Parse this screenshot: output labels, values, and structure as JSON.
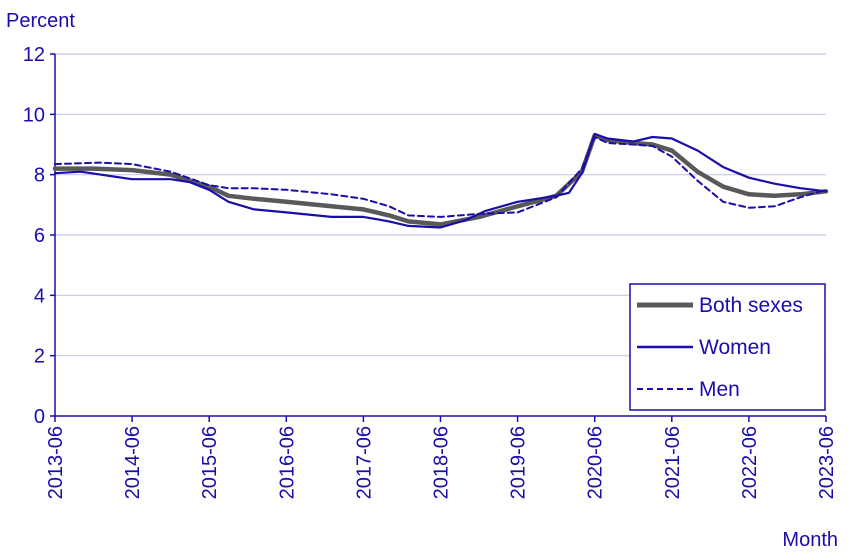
{
  "chart_data": {
    "type": "line",
    "ylabel": "Percent",
    "xlabel": "Month",
    "ylim": [
      0,
      12
    ],
    "yticks": [
      0,
      2,
      4,
      6,
      8,
      10,
      12
    ],
    "xticks": [
      "2013-06",
      "2014-06",
      "2015-06",
      "2016-06",
      "2017-06",
      "2018-06",
      "2019-06",
      "2020-06",
      "2021-06",
      "2022-06",
      "2023-06"
    ],
    "grid": true,
    "legend_position": "bottom-right",
    "series": [
      {
        "name": "Both sexes",
        "color": "#595959",
        "style": "thick",
        "points": [
          [
            "2013-06",
            8.2
          ],
          [
            "2013-12",
            8.2
          ],
          [
            "2014-06",
            8.15
          ],
          [
            "2014-12",
            8.0
          ],
          [
            "2015-06",
            7.6
          ],
          [
            "2015-09",
            7.3
          ],
          [
            "2016-01",
            7.2
          ],
          [
            "2016-06",
            7.1
          ],
          [
            "2017-01",
            6.95
          ],
          [
            "2017-06",
            6.85
          ],
          [
            "2017-10",
            6.65
          ],
          [
            "2018-01",
            6.45
          ],
          [
            "2018-06",
            6.35
          ],
          [
            "2018-12",
            6.6
          ],
          [
            "2019-06",
            6.95
          ],
          [
            "2019-12",
            7.3
          ],
          [
            "2020-04",
            8.1
          ],
          [
            "2020-06",
            9.3
          ],
          [
            "2020-08",
            9.15
          ],
          [
            "2020-12",
            9.05
          ],
          [
            "2021-03",
            9.0
          ],
          [
            "2021-06",
            8.8
          ],
          [
            "2021-10",
            8.1
          ],
          [
            "2022-02",
            7.6
          ],
          [
            "2022-06",
            7.35
          ],
          [
            "2022-10",
            7.3
          ],
          [
            "2023-02",
            7.35
          ],
          [
            "2023-06",
            7.45
          ]
        ]
      },
      {
        "name": "Women",
        "color": "#1a0dab",
        "style": "solid",
        "points": [
          [
            "2013-06",
            8.05
          ],
          [
            "2013-10",
            8.1
          ],
          [
            "2014-06",
            7.85
          ],
          [
            "2014-12",
            7.85
          ],
          [
            "2015-03",
            7.75
          ],
          [
            "2015-06",
            7.5
          ],
          [
            "2015-09",
            7.1
          ],
          [
            "2016-01",
            6.85
          ],
          [
            "2016-06",
            6.75
          ],
          [
            "2017-01",
            6.6
          ],
          [
            "2017-06",
            6.6
          ],
          [
            "2017-10",
            6.45
          ],
          [
            "2018-01",
            6.3
          ],
          [
            "2018-06",
            6.25
          ],
          [
            "2018-10",
            6.5
          ],
          [
            "2019-01",
            6.8
          ],
          [
            "2019-06",
            7.1
          ],
          [
            "2019-12",
            7.3
          ],
          [
            "2020-02",
            7.4
          ],
          [
            "2020-04",
            8.05
          ],
          [
            "2020-06",
            9.35
          ],
          [
            "2020-08",
            9.2
          ],
          [
            "2020-12",
            9.1
          ],
          [
            "2021-03",
            9.25
          ],
          [
            "2021-06",
            9.2
          ],
          [
            "2021-10",
            8.8
          ],
          [
            "2022-02",
            8.25
          ],
          [
            "2022-06",
            7.9
          ],
          [
            "2022-10",
            7.7
          ],
          [
            "2023-02",
            7.55
          ],
          [
            "2023-06",
            7.45
          ]
        ]
      },
      {
        "name": "Men",
        "color": "#1a0dab",
        "style": "dashed",
        "points": [
          [
            "2013-06",
            8.35
          ],
          [
            "2014-01",
            8.4
          ],
          [
            "2014-06",
            8.35
          ],
          [
            "2014-12",
            8.1
          ],
          [
            "2015-06",
            7.65
          ],
          [
            "2015-09",
            7.55
          ],
          [
            "2016-01",
            7.55
          ],
          [
            "2016-06",
            7.5
          ],
          [
            "2017-01",
            7.35
          ],
          [
            "2017-06",
            7.2
          ],
          [
            "2017-10",
            6.95
          ],
          [
            "2018-01",
            6.65
          ],
          [
            "2018-06",
            6.6
          ],
          [
            "2018-12",
            6.7
          ],
          [
            "2019-06",
            6.75
          ],
          [
            "2019-12",
            7.25
          ],
          [
            "2020-04",
            8.2
          ],
          [
            "2020-06",
            9.25
          ],
          [
            "2020-08",
            9.05
          ],
          [
            "2020-12",
            9.0
          ],
          [
            "2021-03",
            8.95
          ],
          [
            "2021-06",
            8.6
          ],
          [
            "2021-10",
            7.8
          ],
          [
            "2022-02",
            7.1
          ],
          [
            "2022-06",
            6.9
          ],
          [
            "2022-10",
            6.95
          ],
          [
            "2023-02",
            7.25
          ],
          [
            "2023-06",
            7.5
          ]
        ]
      }
    ]
  }
}
